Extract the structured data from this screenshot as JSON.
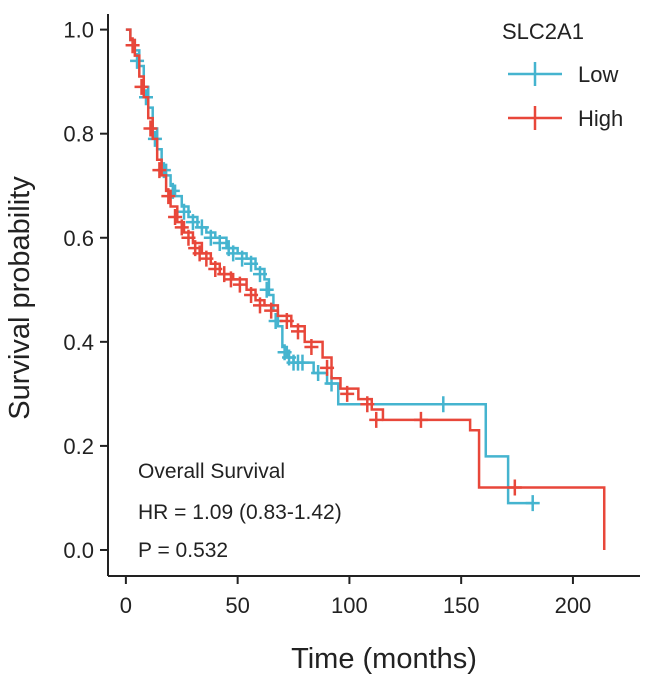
{
  "chart_data": {
    "type": "line",
    "subtype": "kaplan-meier",
    "xlabel": "Time (months)",
    "ylabel": "Survival probability",
    "xlim": [
      -8,
      230
    ],
    "ylim": [
      -0.05,
      1.03
    ],
    "x_ticks": [
      {
        "value": 0,
        "label": "0"
      },
      {
        "value": 50,
        "label": "50"
      },
      {
        "value": 100,
        "label": "100"
      },
      {
        "value": 150,
        "label": "150"
      },
      {
        "value": 200,
        "label": "200"
      }
    ],
    "y_ticks": [
      {
        "value": 0.0,
        "label": "0.0"
      },
      {
        "value": 0.2,
        "label": "0.2"
      },
      {
        "value": 0.4,
        "label": "0.4"
      },
      {
        "value": 0.6,
        "label": "0.6"
      },
      {
        "value": 0.8,
        "label": "0.8"
      },
      {
        "value": 1.0,
        "label": "1.0"
      }
    ],
    "legend": {
      "title": "SLC2A1",
      "position": "top-right"
    },
    "annotations": [
      "Overall Survival",
      "HR = 1.09 (0.83-1.42)",
      "P = 0.532"
    ],
    "series": [
      {
        "name": "Low",
        "color": "#45B4CF",
        "steps": [
          [
            0,
            1.0
          ],
          [
            2,
            0.98
          ],
          [
            4,
            0.96
          ],
          [
            6,
            0.93
          ],
          [
            8,
            0.89
          ],
          [
            10,
            0.85
          ],
          [
            12,
            0.81
          ],
          [
            14,
            0.77
          ],
          [
            16,
            0.74
          ],
          [
            18,
            0.72
          ],
          [
            20,
            0.7
          ],
          [
            22,
            0.68
          ],
          [
            25,
            0.66
          ],
          [
            28,
            0.64
          ],
          [
            32,
            0.62
          ],
          [
            36,
            0.61
          ],
          [
            40,
            0.6
          ],
          [
            45,
            0.58
          ],
          [
            50,
            0.57
          ],
          [
            54,
            0.56
          ],
          [
            58,
            0.54
          ],
          [
            62,
            0.52
          ],
          [
            64,
            0.49
          ],
          [
            66,
            0.46
          ],
          [
            68,
            0.43
          ],
          [
            70,
            0.39
          ],
          [
            72,
            0.37
          ],
          [
            75,
            0.36
          ],
          [
            84,
            0.34
          ],
          [
            90,
            0.32
          ],
          [
            95,
            0.28
          ],
          [
            161,
            0.18
          ],
          [
            171,
            0.09
          ],
          [
            182,
            0.09
          ]
        ],
        "censors": [
          [
            5,
            0.94
          ],
          [
            9,
            0.87
          ],
          [
            13,
            0.79
          ],
          [
            17,
            0.73
          ],
          [
            21,
            0.69
          ],
          [
            26,
            0.65
          ],
          [
            30,
            0.63
          ],
          [
            34,
            0.62
          ],
          [
            38,
            0.6
          ],
          [
            42,
            0.59
          ],
          [
            46,
            0.58
          ],
          [
            48,
            0.57
          ],
          [
            52,
            0.56
          ],
          [
            56,
            0.55
          ],
          [
            60,
            0.53
          ],
          [
            63,
            0.5
          ],
          [
            67,
            0.44
          ],
          [
            71,
            0.38
          ],
          [
            73,
            0.37
          ],
          [
            75,
            0.36
          ],
          [
            77,
            0.36
          ],
          [
            79,
            0.36
          ],
          [
            86,
            0.34
          ],
          [
            92,
            0.32
          ],
          [
            142,
            0.28
          ],
          [
            182,
            0.09
          ]
        ]
      },
      {
        "name": "High",
        "color": "#E8473A",
        "steps": [
          [
            0,
            1.0
          ],
          [
            2,
            0.98
          ],
          [
            4,
            0.95
          ],
          [
            6,
            0.91
          ],
          [
            8,
            0.87
          ],
          [
            10,
            0.83
          ],
          [
            12,
            0.79
          ],
          [
            14,
            0.75
          ],
          [
            16,
            0.72
          ],
          [
            18,
            0.69
          ],
          [
            20,
            0.66
          ],
          [
            23,
            0.63
          ],
          [
            26,
            0.61
          ],
          [
            30,
            0.59
          ],
          [
            34,
            0.57
          ],
          [
            38,
            0.55
          ],
          [
            42,
            0.53
          ],
          [
            48,
            0.52
          ],
          [
            54,
            0.5
          ],
          [
            58,
            0.48
          ],
          [
            62,
            0.47
          ],
          [
            68,
            0.45
          ],
          [
            74,
            0.43
          ],
          [
            80,
            0.4
          ],
          [
            88,
            0.37
          ],
          [
            92,
            0.33
          ],
          [
            96,
            0.31
          ],
          [
            104,
            0.29
          ],
          [
            110,
            0.27
          ],
          [
            115,
            0.25
          ],
          [
            154,
            0.23
          ],
          [
            158,
            0.12
          ],
          [
            214,
            0.0
          ]
        ],
        "censors": [
          [
            3,
            0.97
          ],
          [
            7,
            0.89
          ],
          [
            11,
            0.81
          ],
          [
            15,
            0.73
          ],
          [
            19,
            0.68
          ],
          [
            22,
            0.64
          ],
          [
            25,
            0.62
          ],
          [
            28,
            0.6
          ],
          [
            31,
            0.58
          ],
          [
            33,
            0.57
          ],
          [
            36,
            0.56
          ],
          [
            40,
            0.54
          ],
          [
            44,
            0.53
          ],
          [
            47,
            0.52
          ],
          [
            51,
            0.51
          ],
          [
            56,
            0.49
          ],
          [
            60,
            0.47
          ],
          [
            65,
            0.46
          ],
          [
            72,
            0.44
          ],
          [
            77,
            0.42
          ],
          [
            83,
            0.39
          ],
          [
            90,
            0.35
          ],
          [
            99,
            0.3
          ],
          [
            108,
            0.28
          ],
          [
            112,
            0.25
          ],
          [
            132,
            0.25
          ],
          [
            174,
            0.12
          ]
        ]
      }
    ]
  }
}
